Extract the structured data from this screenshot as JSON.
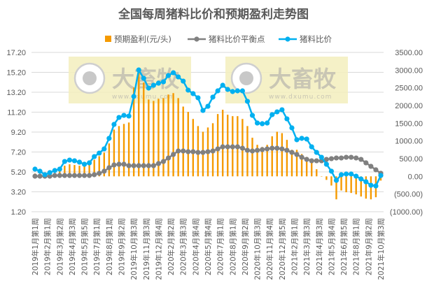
{
  "chart_data": {
    "type": "bar+line",
    "title": "全国每周猪料比价和预期盈利走势图",
    "legend": {
      "placement": "top",
      "entries": [
        "预期盈利(元/头)",
        "猪料比价平衡点",
        "猪料比价"
      ]
    },
    "watermark": {
      "text": "大畜牧",
      "url": "www.dxumu.com"
    },
    "x_tick_labels": [
      "2019年1月第1周",
      "2019年2月第1周",
      "2019年3月第2周",
      "2019年4月第3周",
      "2019年5月第5周",
      "2019年7月第1周",
      "2019年8月第1周",
      "2019年9月第2周",
      "2019年10月第3周",
      "2019年11月第3周",
      "2019年12月第4周",
      "2020年2月第2周",
      "2020年3月第3周",
      "2020年4月第4周",
      "2020年5月第4周",
      "2020年7月第1周",
      "2020年8月第1周",
      "2020年9月第2周",
      "2020年10月第3周",
      "2020年11月第4周",
      "2020年12月第5周",
      "2021年2月第1周",
      "2021年3月第3周",
      "2021年4月第3周",
      "2021年5月第4周",
      "2021年6月第5周",
      "2021年8月第1周",
      "2021年9月第2周",
      "2021年10月第3周"
    ],
    "left_axis": {
      "ylim": [
        1.2,
        17.2
      ],
      "ticks": [
        "17.20",
        "15.20",
        "13.20",
        "11.20",
        "9.20",
        "7.20",
        "5.20",
        "3.20",
        "1.20"
      ]
    },
    "right_axis": {
      "ylim": [
        -1000,
        3500
      ],
      "ticks": [
        "3500.00",
        "3000.00",
        "2500.00",
        "2000.00",
        "1500.00",
        "1000.00",
        "500.00",
        "0.00",
        "(500.00)",
        "(1000.00)"
      ],
      "negative_color": "#ff0000"
    },
    "grid": true,
    "series": [
      {
        "name": "预期盈利(元/头)",
        "type": "bar",
        "axis": "right",
        "color": "#f59a00",
        "values": [
          80,
          40,
          0,
          0,
          40,
          200,
          300,
          340,
          320,
          300,
          280,
          340,
          470,
          570,
          670,
          930,
          1320,
          1420,
          1480,
          1520,
          2510,
          3000,
          2650,
          2170,
          2130,
          2190,
          2210,
          2310,
          2350,
          2210,
          1970,
          1820,
          1620,
          1420,
          1260,
          1380,
          1500,
          1760,
          1880,
          1740,
          1700,
          1700,
          1620,
          1420,
          1090,
          890,
          830,
          890,
          1130,
          1260,
          1220,
          1030,
          750,
          750,
          630,
          550,
          380,
          200,
          0,
          -100,
          -260,
          -650,
          -400,
          -450,
          -470,
          -510,
          -570,
          -630,
          -650,
          -590,
          -120
        ]
      },
      {
        "name": "猪料比价平衡点",
        "type": "line",
        "axis": "left",
        "color": "#808080",
        "values": [
          4.77,
          4.77,
          4.77,
          4.77,
          4.84,
          4.84,
          4.84,
          4.84,
          4.84,
          4.84,
          4.84,
          4.84,
          4.92,
          5.06,
          5.27,
          5.62,
          5.9,
          5.97,
          5.97,
          5.83,
          5.83,
          5.83,
          5.83,
          5.83,
          5.83,
          6.04,
          6.25,
          6.6,
          6.95,
          7.3,
          7.3,
          7.23,
          7.23,
          7.16,
          7.16,
          7.23,
          7.3,
          7.51,
          7.72,
          7.72,
          7.72,
          7.72,
          7.58,
          7.37,
          7.3,
          7.37,
          7.44,
          7.51,
          7.58,
          7.58,
          7.51,
          7.37,
          7.16,
          6.95,
          6.67,
          6.46,
          6.32,
          6.32,
          6.32,
          6.46,
          6.53,
          6.6,
          6.6,
          6.67,
          6.67,
          6.6,
          6.46,
          6.11,
          5.76,
          5.41,
          5.06
        ]
      },
      {
        "name": "猪料比价",
        "type": "line",
        "axis": "left",
        "color": "#00b0f0",
        "values": [
          5.48,
          5.27,
          4.92,
          5.13,
          5.34,
          5.48,
          6.25,
          6.39,
          6.32,
          6.18,
          5.97,
          6.11,
          6.74,
          7.09,
          7.51,
          8.57,
          9.97,
          10.67,
          10.88,
          10.81,
          12.78,
          15.44,
          14.6,
          13.62,
          13.9,
          14.11,
          14.25,
          14.88,
          15.16,
          14.74,
          14.32,
          13.41,
          13.06,
          12.64,
          11.37,
          11.79,
          12.71,
          13.34,
          13.9,
          13.48,
          13.27,
          13.34,
          13.34,
          12.29,
          10.88,
          10.11,
          10.04,
          10.11,
          10.95,
          11.23,
          11.44,
          10.53,
          9.62,
          8.43,
          8.57,
          8.5,
          7.72,
          7.16,
          6.67,
          5.97,
          5.27,
          4.35,
          4.92,
          4.99,
          4.99,
          4.77,
          4.49,
          4.21,
          3.86,
          3.79,
          4.84
        ]
      }
    ]
  }
}
